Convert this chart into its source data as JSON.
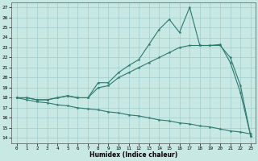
{
  "xlabel": "Humidex (Indice chaleur)",
  "background_color": "#c8e8e4",
  "grid_color": "#a0cccc",
  "line_color": "#2a7a6e",
  "xlim": [
    -0.5,
    23.5
  ],
  "ylim": [
    13.5,
    27.5
  ],
  "xticks": [
    0,
    1,
    2,
    3,
    4,
    5,
    6,
    7,
    8,
    9,
    10,
    11,
    12,
    13,
    14,
    15,
    16,
    17,
    18,
    19,
    20,
    21,
    22,
    23
  ],
  "yticks": [
    14,
    15,
    16,
    17,
    18,
    19,
    20,
    21,
    22,
    23,
    24,
    25,
    26,
    27
  ],
  "line1_x": [
    0,
    1,
    2,
    3,
    4,
    5,
    6,
    7,
    8,
    9,
    10,
    11,
    12,
    13,
    14,
    15,
    16,
    17,
    18,
    19,
    20,
    21,
    22,
    23
  ],
  "line1_y": [
    18.0,
    18.0,
    17.8,
    17.8,
    18.0,
    18.2,
    18.0,
    18.0,
    19.5,
    19.5,
    20.5,
    21.2,
    21.8,
    23.3,
    24.8,
    25.8,
    24.5,
    27.0,
    23.2,
    23.2,
    23.3,
    21.5,
    18.5,
    14.2
  ],
  "line2_x": [
    0,
    1,
    2,
    3,
    4,
    5,
    6,
    7,
    8,
    9,
    10,
    11,
    12,
    13,
    14,
    15,
    16,
    17,
    18,
    19,
    20,
    21,
    22,
    23
  ],
  "line2_y": [
    18.0,
    18.0,
    17.8,
    17.8,
    18.0,
    18.2,
    18.0,
    18.0,
    19.0,
    19.2,
    20.0,
    20.5,
    21.0,
    21.5,
    22.0,
    22.5,
    23.0,
    23.2,
    23.2,
    23.2,
    23.2,
    22.0,
    19.2,
    14.2
  ],
  "line3_x": [
    0,
    1,
    2,
    3,
    4,
    5,
    6,
    7,
    8,
    9,
    10,
    11,
    12,
    13,
    14,
    15,
    16,
    17,
    18,
    19,
    20,
    21,
    22,
    23
  ],
  "line3_y": [
    18.0,
    17.8,
    17.6,
    17.5,
    17.3,
    17.2,
    17.0,
    16.9,
    16.8,
    16.6,
    16.5,
    16.3,
    16.2,
    16.0,
    15.8,
    15.7,
    15.5,
    15.4,
    15.2,
    15.1,
    14.9,
    14.7,
    14.6,
    14.4
  ]
}
